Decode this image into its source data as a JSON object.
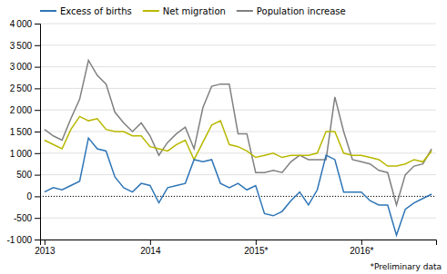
{
  "chart_data": {
    "type": "line",
    "categories": [
      "2013",
      null,
      null,
      null,
      null,
      null,
      null,
      null,
      null,
      null,
      null,
      null,
      "2014",
      null,
      null,
      null,
      null,
      null,
      null,
      null,
      null,
      null,
      null,
      null,
      "2015*",
      null,
      null,
      null,
      null,
      null,
      null,
      null,
      null,
      null,
      null,
      null,
      "2016*",
      null,
      null,
      null,
      null,
      null,
      null,
      null,
      null
    ],
    "series": [
      {
        "name": "Excess of births",
        "color": "#2e75b6",
        "values": [
          100,
          200,
          150,
          250,
          350,
          1350,
          1100,
          1050,
          450,
          200,
          100,
          300,
          250,
          -150,
          200,
          250,
          300,
          850,
          800,
          850,
          300,
          200,
          300,
          150,
          250,
          -400,
          -450,
          -350,
          -100,
          100,
          -200,
          150,
          950,
          850,
          100,
          100,
          100,
          -100,
          -200,
          -200,
          -900,
          -300,
          -150,
          -50,
          50
        ]
      },
      {
        "name": "Net migration",
        "color": "#b8b800",
        "values": [
          1300,
          1200,
          1100,
          1550,
          1850,
          1750,
          1800,
          1550,
          1500,
          1500,
          1400,
          1400,
          1150,
          1100,
          1050,
          1200,
          1300,
          850,
          1250,
          1650,
          1750,
          1200,
          1150,
          1050,
          900,
          950,
          1000,
          900,
          950,
          950,
          950,
          1000,
          1500,
          1500,
          1000,
          950,
          950,
          900,
          850,
          700,
          700,
          750,
          850,
          800,
          1050
        ]
      },
      {
        "name": "Population increase",
        "color": "#808080",
        "values": [
          1550,
          1400,
          1300,
          1800,
          2250,
          3150,
          2800,
          2600,
          1950,
          1700,
          1500,
          1700,
          1400,
          950,
          1250,
          1450,
          1600,
          1100,
          2050,
          2550,
          2600,
          2600,
          1450,
          1450,
          550,
          550,
          600,
          550,
          800,
          950,
          850,
          850,
          850,
          2300,
          1500,
          850,
          800,
          750,
          600,
          550,
          -200,
          500,
          700,
          750,
          1100
        ]
      }
    ],
    "ylim": [
      -1000,
      4000
    ],
    "yticks": [
      {
        "value": -1000,
        "label": "-1 000"
      },
      -500,
      0,
      500,
      {
        "value": 1000,
        "label": "1 000"
      },
      {
        "value": 1500,
        "label": "1 500"
      },
      {
        "value": 2000,
        "label": "2 000"
      },
      {
        "value": 2500,
        "label": "2 500"
      },
      {
        "value": 3000,
        "label": "3 000"
      },
      {
        "value": 3500,
        "label": "3 500"
      },
      {
        "value": 4000,
        "label": "4 000"
      }
    ],
    "grid": true,
    "legend": "upper left",
    "annotation": "*Preliminary data"
  }
}
